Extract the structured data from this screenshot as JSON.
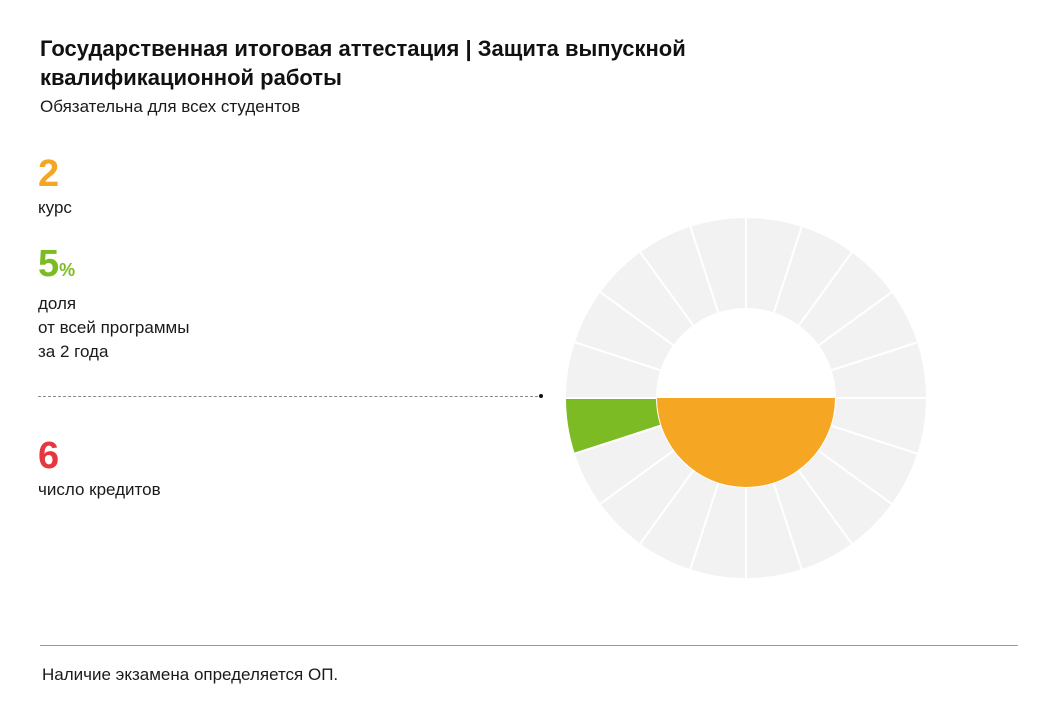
{
  "title": "Государственная итоговая аттестация | Защита выпускной квалификационной работы",
  "subtitle": "Обязательна для всех студентов",
  "stats": {
    "year": {
      "value": "2",
      "label": "курс",
      "color": "#F5A623"
    },
    "share": {
      "value": "5",
      "unit": "%",
      "label": "доля\nот всей программы\nза 2 года",
      "color": "#7CBB24"
    },
    "credits": {
      "value": "6",
      "label": "число кредитов",
      "color": "#E6373F"
    }
  },
  "chart_data": {
    "type": "pie",
    "segments_total": 20,
    "highlighted_segments": 1,
    "highlight_share_percent": 5,
    "inner_half_disc": "lower",
    "colors": {
      "segment_bg": "#F2F2F2",
      "segment_border": "#FFFFFF",
      "highlight": "#7CBB24",
      "inner": "#F5A623"
    }
  },
  "footnote": "Наличие экзамена определяется ОП."
}
